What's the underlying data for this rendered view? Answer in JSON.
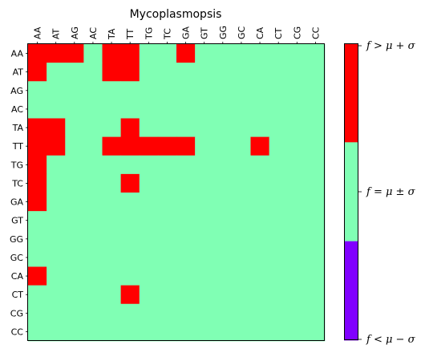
{
  "chart_data": {
    "type": "heatmap",
    "title": "Mycoplasmopsis",
    "x_categories": [
      "AA",
      "AT",
      "AG",
      "AC",
      "TA",
      "TT",
      "TG",
      "TC",
      "GA",
      "GT",
      "GG",
      "GC",
      "CA",
      "CT",
      "CG",
      "CC"
    ],
    "y_categories": [
      "AA",
      "AT",
      "AG",
      "AC",
      "TA",
      "TT",
      "TG",
      "TC",
      "GA",
      "GT",
      "GG",
      "GC",
      "CA",
      "CT",
      "CG",
      "CC"
    ],
    "x_tick_position": "top",
    "grid": false,
    "legend_placement": "right",
    "levels": [
      {
        "value": -1,
        "label": "f < μ − σ",
        "color": "#8000ff"
      },
      {
        "value": 0,
        "label": "f = μ ± σ",
        "color": "#80ffb4"
      },
      {
        "value": 1,
        "label": "f > μ + σ",
        "color": "#ff0000"
      }
    ],
    "matrix": [
      [
        1,
        1,
        1,
        0,
        1,
        1,
        0,
        0,
        1,
        0,
        0,
        0,
        0,
        0,
        0,
        0
      ],
      [
        1,
        0,
        0,
        0,
        1,
        1,
        0,
        0,
        0,
        0,
        0,
        0,
        0,
        0,
        0,
        0
      ],
      [
        0,
        0,
        0,
        0,
        0,
        0,
        0,
        0,
        0,
        0,
        0,
        0,
        0,
        0,
        0,
        0
      ],
      [
        0,
        0,
        0,
        0,
        0,
        0,
        0,
        0,
        0,
        0,
        0,
        0,
        0,
        0,
        0,
        0
      ],
      [
        1,
        1,
        0,
        0,
        0,
        1,
        0,
        0,
        0,
        0,
        0,
        0,
        0,
        0,
        0,
        0
      ],
      [
        1,
        1,
        0,
        0,
        1,
        1,
        1,
        1,
        1,
        0,
        0,
        0,
        1,
        0,
        0,
        0
      ],
      [
        1,
        0,
        0,
        0,
        0,
        0,
        0,
        0,
        0,
        0,
        0,
        0,
        0,
        0,
        0,
        0
      ],
      [
        1,
        0,
        0,
        0,
        0,
        1,
        0,
        0,
        0,
        0,
        0,
        0,
        0,
        0,
        0,
        0
      ],
      [
        1,
        0,
        0,
        0,
        0,
        0,
        0,
        0,
        0,
        0,
        0,
        0,
        0,
        0,
        0,
        0
      ],
      [
        0,
        0,
        0,
        0,
        0,
        0,
        0,
        0,
        0,
        0,
        0,
        0,
        0,
        0,
        0,
        0
      ],
      [
        0,
        0,
        0,
        0,
        0,
        0,
        0,
        0,
        0,
        0,
        0,
        0,
        0,
        0,
        0,
        0
      ],
      [
        0,
        0,
        0,
        0,
        0,
        0,
        0,
        0,
        0,
        0,
        0,
        0,
        0,
        0,
        0,
        0
      ],
      [
        1,
        0,
        0,
        0,
        0,
        0,
        0,
        0,
        0,
        0,
        0,
        0,
        0,
        0,
        0,
        0
      ],
      [
        0,
        0,
        0,
        0,
        0,
        1,
        0,
        0,
        0,
        0,
        0,
        0,
        0,
        0,
        0,
        0
      ],
      [
        0,
        0,
        0,
        0,
        0,
        0,
        0,
        0,
        0,
        0,
        0,
        0,
        0,
        0,
        0,
        0
      ],
      [
        0,
        0,
        0,
        0,
        0,
        0,
        0,
        0,
        0,
        0,
        0,
        0,
        0,
        0,
        0,
        0
      ]
    ]
  }
}
